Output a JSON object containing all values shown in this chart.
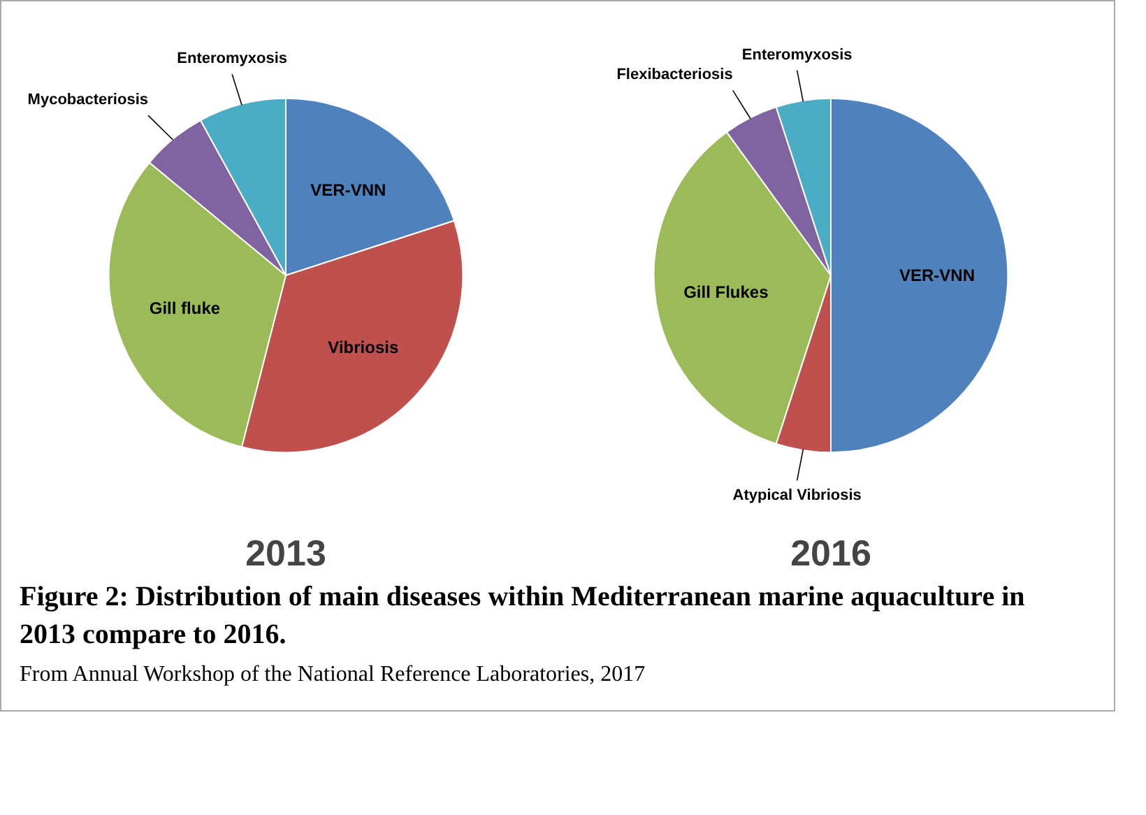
{
  "chart_data": [
    {
      "type": "pie",
      "title": "2013",
      "categories": [
        "VER-VNN",
        "Vibriosis",
        "Gill fluke",
        "Mycobacteriosis",
        "Enteromyxosis"
      ],
      "values": [
        20,
        34,
        32,
        6,
        8
      ],
      "colors": [
        "#4f81bd",
        "#c0504d",
        "#9bbb59",
        "#8064a2",
        "#4bacc6"
      ],
      "annotations": [
        "Figure 2: Distribution of main diseases within Mediterranean marine aquaculture in 2013 compare to 2016.",
        "From Annual Workshop of the National Reference Laboratories, 2017"
      ]
    },
    {
      "type": "pie",
      "title": "2016",
      "categories": [
        "VER-VNN",
        "Atypical Vibriosis",
        "Gill Flukes",
        "Flexibacteriosis",
        "Enteromyxosis"
      ],
      "values": [
        50,
        5,
        35,
        5,
        5
      ],
      "colors": [
        "#4f81bd",
        "#c0504d",
        "#9bbb59",
        "#8064a2",
        "#4bacc6"
      ]
    }
  ]
}
